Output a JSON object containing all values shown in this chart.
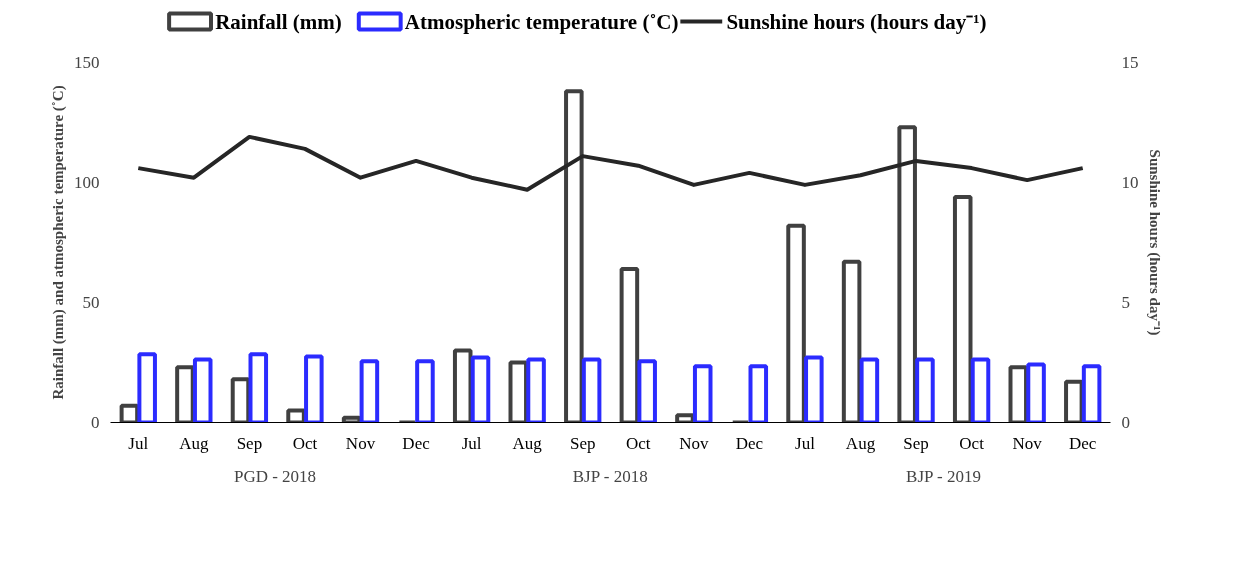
{
  "chart_data": {
    "type": "bar",
    "categories": [
      "Jul",
      "Aug",
      "Sep",
      "Oct",
      "Nov",
      "Dec",
      "Jul",
      "Aug",
      "Sep",
      "Oct",
      "Nov",
      "Dec",
      "Jul",
      "Aug",
      "Sep",
      "Oct",
      "Nov",
      "Dec"
    ],
    "ylabel": "Rainfall (mm) and atmospheric temperature (˚C)",
    "y2label": "Sunshine hours (hours day⁻¹)",
    "ylim": [
      0,
      150
    ],
    "yticks": [
      0,
      50,
      100,
      150
    ],
    "y2lim": [
      0,
      15
    ],
    "y2ticks": [
      0,
      5,
      10,
      15
    ],
    "annotations": [
      "PGD -  2018",
      "BJP - 2018",
      "BJP - 2019"
    ],
    "legend": "top",
    "grid": false,
    "series": [
      {
        "name": "Rainfall (mm)",
        "color": "#404040",
        "values": [
          7,
          23,
          18,
          5,
          2,
          0,
          30,
          25,
          138,
          64,
          3,
          0,
          82,
          67,
          123,
          94,
          23,
          17
        ]
      },
      {
        "name": "Atmospheric temperature (˚C)",
        "color": "#2b2bff",
        "values": [
          28.4,
          26.3,
          28.4,
          27.5,
          25.5,
          25.5,
          27.1,
          26.3,
          26.3,
          25.5,
          23.4,
          23.4,
          27.1,
          26.3,
          26.3,
          26.3,
          24.2,
          23.4
        ]
      },
      {
        "name": "Sunshine hours (hours day⁻¹)",
        "type": "line",
        "axis": "y2",
        "color": "#262626",
        "values": [
          10.6,
          10.2,
          11.9,
          11.4,
          10.2,
          10.9,
          10.2,
          9.7,
          11.1,
          10.7,
          9.9,
          10.4,
          9.9,
          10.3,
          10.9,
          10.6,
          10.1,
          10.6
        ]
      }
    ]
  }
}
